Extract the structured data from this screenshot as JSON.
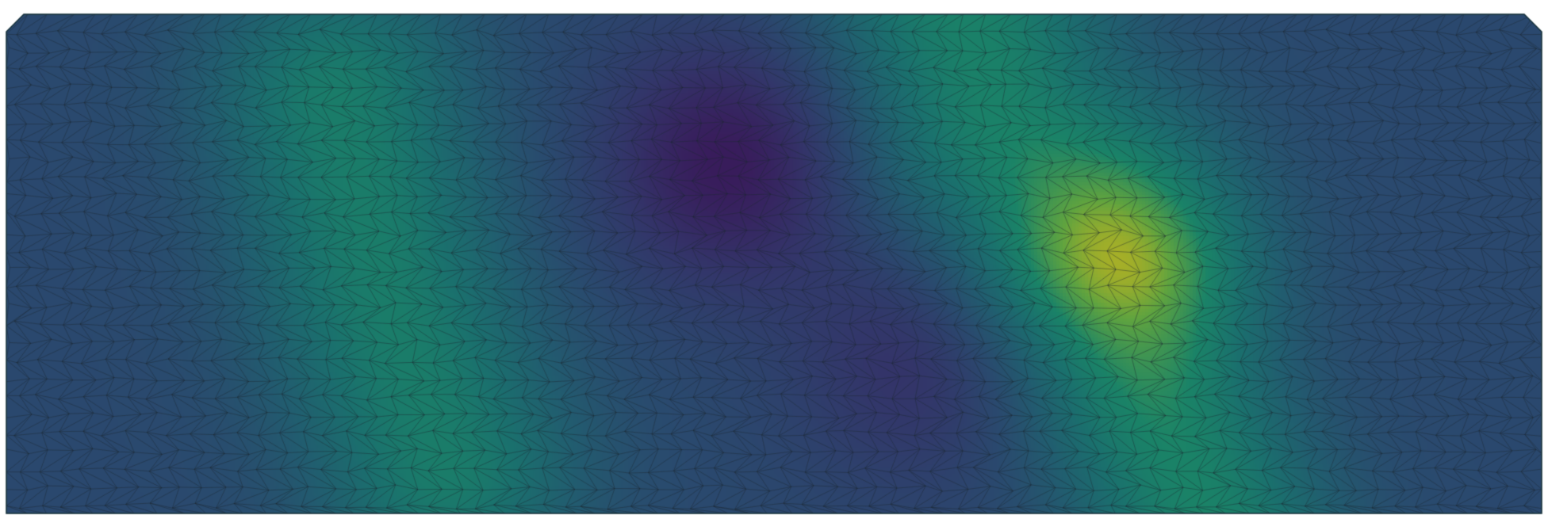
{
  "colors": {
    "background": "#ffffff",
    "mesh_edge": "#1f2a33",
    "outline": "#15303a",
    "colormap": "viridis",
    "baseline_fill": "#245a6c"
  },
  "field": {
    "baseline": 0.34,
    "peaks": [
      {
        "kind": "high",
        "value": 0.8,
        "along": 0.06,
        "across": 0.06,
        "path": [
          [
            0.285,
            0.9
          ],
          [
            0.245,
            0.55
          ],
          [
            0.215,
            0.17
          ]
        ]
      },
      {
        "kind": "high",
        "value": 0.84,
        "along": 0.05,
        "across": 0.065,
        "path": [
          [
            0.62,
            -0.05
          ],
          [
            0.645,
            0.21
          ],
          [
            0.69,
            0.38
          ]
        ]
      },
      {
        "kind": "high",
        "value": 0.85,
        "along": 0.06,
        "across": 0.055,
        "path": [
          [
            0.785,
            1.05
          ],
          [
            0.75,
            0.78
          ],
          [
            0.74,
            0.56
          ]
        ]
      },
      {
        "kind": "low",
        "value": 0.0,
        "along": 0.0,
        "across": 0.058,
        "path": [
          [
            0.47,
            0.29
          ]
        ]
      },
      {
        "kind": "low",
        "value": 0.13,
        "along": 0.0,
        "across": 0.058,
        "path": [
          [
            0.595,
            0.68
          ]
        ]
      }
    ]
  },
  "mesh": {
    "type": "triangulated"
  }
}
